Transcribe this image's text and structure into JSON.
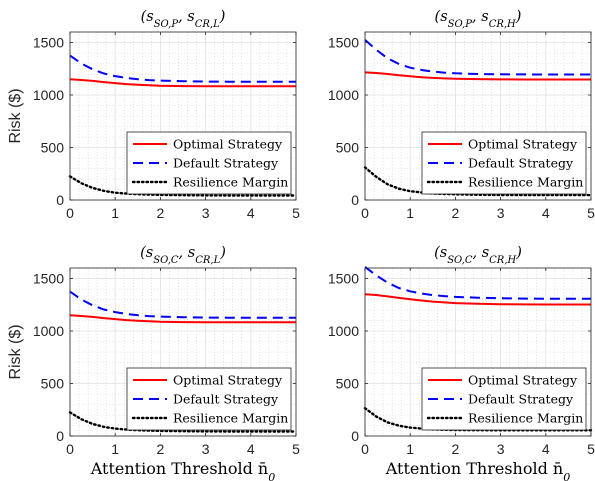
{
  "chart_data": [
    {
      "type": "line",
      "title": "(s_SO,P, s_CR,L)",
      "xlabel": "",
      "ylabel": "Risk ($)",
      "xlim": [
        0,
        5
      ],
      "ylim": [
        0,
        1600
      ],
      "x_ticks": [
        "0",
        "1",
        "2",
        "3",
        "4",
        "5"
      ],
      "y_ticks": [
        "0",
        "500",
        "1000",
        "1500"
      ],
      "grid": true,
      "legend_position": "bottom-right",
      "x": [
        0,
        0.25,
        0.5,
        0.75,
        1,
        1.25,
        1.5,
        1.75,
        2,
        2.5,
        3,
        3.5,
        4,
        4.5,
        5
      ],
      "series": [
        {
          "name": "Optimal Strategy",
          "color": "#ff0000",
          "style": "solid",
          "values": [
            1150,
            1143,
            1134,
            1123,
            1113,
            1104,
            1097,
            1092,
            1088,
            1085,
            1083,
            1083,
            1083,
            1083,
            1083
          ]
        },
        {
          "name": "Default Strategy",
          "color": "#0000ff",
          "style": "dashed",
          "values": [
            1375,
            1300,
            1245,
            1205,
            1180,
            1163,
            1150,
            1142,
            1137,
            1131,
            1128,
            1127,
            1126,
            1126,
            1126
          ]
        },
        {
          "name": "Resilience Margin",
          "color": "#000000",
          "style": "dotted",
          "values": [
            225,
            160,
            115,
            87,
            70,
            61,
            55,
            51,
            49,
            46,
            44,
            43,
            43,
            43,
            43
          ]
        }
      ]
    },
    {
      "type": "line",
      "title": "(s_SO,P, s_CR,H)",
      "xlabel": "",
      "ylabel": "",
      "xlim": [
        0,
        5
      ],
      "ylim": [
        0,
        1600
      ],
      "x_ticks": [
        "0",
        "1",
        "2",
        "3",
        "4",
        "5"
      ],
      "y_ticks": [
        "0",
        "500",
        "1000",
        "1500"
      ],
      "grid": true,
      "legend_position": "bottom-right",
      "x": [
        0,
        0.25,
        0.5,
        0.75,
        1,
        1.25,
        1.5,
        1.75,
        2,
        2.5,
        3,
        3.5,
        4,
        4.5,
        5
      ],
      "series": [
        {
          "name": "Optimal Strategy",
          "color": "#ff0000",
          "style": "solid",
          "values": [
            1215,
            1210,
            1200,
            1188,
            1178,
            1170,
            1163,
            1158,
            1155,
            1151,
            1149,
            1148,
            1148,
            1148,
            1148
          ]
        },
        {
          "name": "Default Strategy",
          "color": "#0000ff",
          "style": "dashed",
          "values": [
            1525,
            1430,
            1350,
            1295,
            1260,
            1238,
            1223,
            1213,
            1207,
            1200,
            1197,
            1196,
            1195,
            1195,
            1195
          ]
        },
        {
          "name": "Resilience Margin",
          "color": "#000000",
          "style": "dotted",
          "values": [
            310,
            220,
            150,
            108,
            84,
            71,
            62,
            57,
            54,
            50,
            48,
            47,
            47,
            47,
            47
          ]
        }
      ]
    },
    {
      "type": "line",
      "title": "(s_SO,C, s_CR,L)",
      "xlabel": "Attention Threshold n̄_0",
      "ylabel": "Risk ($)",
      "xlim": [
        0,
        5
      ],
      "ylim": [
        0,
        1600
      ],
      "x_ticks": [
        "0",
        "1",
        "2",
        "3",
        "4",
        "5"
      ],
      "y_ticks": [
        "0",
        "500",
        "1000",
        "1500"
      ],
      "grid": true,
      "legend_position": "bottom-right",
      "x": [
        0,
        0.25,
        0.5,
        0.75,
        1,
        1.25,
        1.5,
        1.75,
        2,
        2.5,
        3,
        3.5,
        4,
        4.5,
        5
      ],
      "series": [
        {
          "name": "Optimal Strategy",
          "color": "#ff0000",
          "style": "solid",
          "values": [
            1150,
            1143,
            1134,
            1123,
            1113,
            1104,
            1097,
            1092,
            1088,
            1085,
            1083,
            1083,
            1083,
            1083,
            1083
          ]
        },
        {
          "name": "Default Strategy",
          "color": "#0000ff",
          "style": "dashed",
          "values": [
            1375,
            1300,
            1245,
            1205,
            1180,
            1163,
            1150,
            1142,
            1137,
            1131,
            1128,
            1127,
            1126,
            1126,
            1126
          ]
        },
        {
          "name": "Resilience Margin",
          "color": "#000000",
          "style": "dotted",
          "values": [
            225,
            160,
            115,
            87,
            70,
            61,
            55,
            51,
            49,
            46,
            44,
            43,
            43,
            43,
            43
          ]
        }
      ]
    },
    {
      "type": "line",
      "title": "(s_SO,C, s_CR,H)",
      "xlabel": "Attention Threshold n̄_0",
      "ylabel": "",
      "xlim": [
        0,
        5
      ],
      "ylim": [
        0,
        1600
      ],
      "x_ticks": [
        "0",
        "1",
        "2",
        "3",
        "4",
        "5"
      ],
      "y_ticks": [
        "0",
        "500",
        "1000",
        "1500"
      ],
      "grid": true,
      "legend_position": "bottom-right",
      "x": [
        0,
        0.25,
        0.5,
        0.75,
        1,
        1.25,
        1.5,
        1.75,
        2,
        2.5,
        3,
        3.5,
        4,
        4.5,
        5
      ],
      "series": [
        {
          "name": "Optimal Strategy",
          "color": "#ff0000",
          "style": "solid",
          "values": [
            1350,
            1343,
            1330,
            1315,
            1302,
            1290,
            1280,
            1272,
            1266,
            1259,
            1255,
            1253,
            1252,
            1252,
            1252
          ]
        },
        {
          "name": "Default Strategy",
          "color": "#0000ff",
          "style": "dashed",
          "values": [
            1610,
            1530,
            1460,
            1410,
            1378,
            1357,
            1342,
            1332,
            1325,
            1317,
            1312,
            1309,
            1308,
            1307,
            1307
          ]
        },
        {
          "name": "Resilience Margin",
          "color": "#000000",
          "style": "dotted",
          "values": [
            265,
            185,
            130,
            98,
            80,
            70,
            63,
            59,
            57,
            55,
            54,
            54,
            54,
            54,
            54
          ]
        }
      ]
    }
  ]
}
